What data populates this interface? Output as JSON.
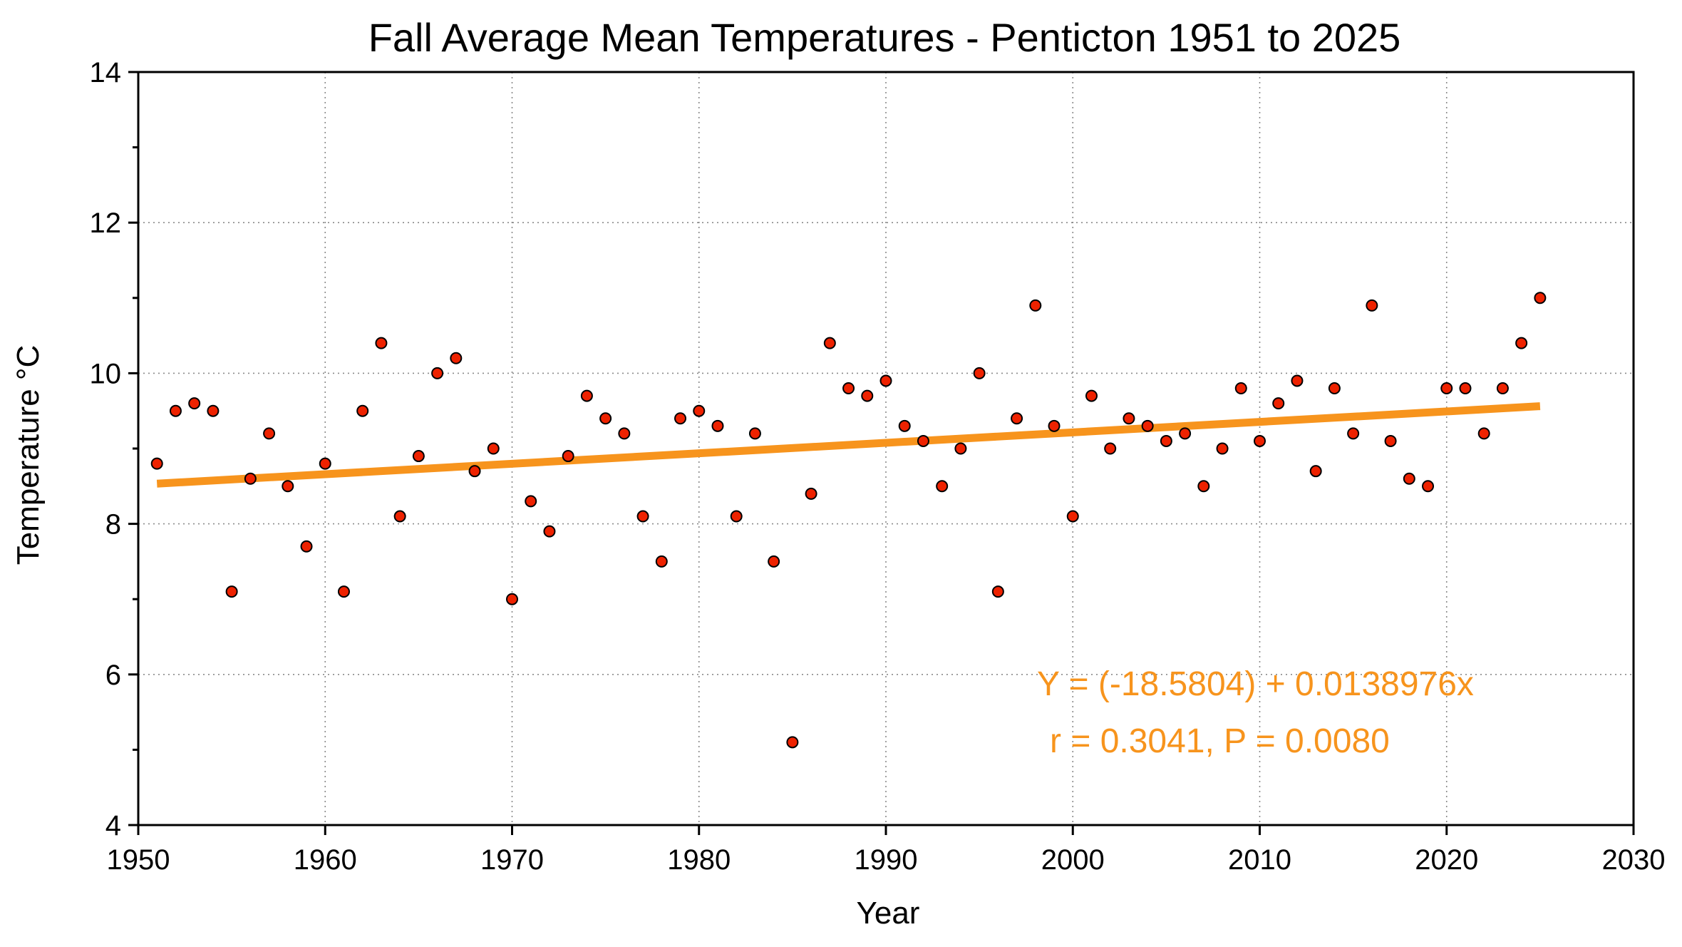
{
  "chart_data": {
    "type": "scatter",
    "title": "Fall Average Mean Temperatures - Penticton 1951 to 2025",
    "xlabel": "Year",
    "ylabel": "Temperature °C",
    "xlim": [
      1950,
      2030
    ],
    "ylim": [
      4,
      14
    ],
    "xticks": [
      1950,
      1960,
      1970,
      1980,
      1990,
      2000,
      2010,
      2020,
      2030
    ],
    "yticks": [
      4,
      6,
      8,
      10,
      12,
      14
    ],
    "yminor_step": 1,
    "grid": true,
    "colors": {
      "points": "#ee2200",
      "trend": "#f7941d",
      "annotation": "#f7941d"
    },
    "series": [
      {
        "x": [
          1951,
          1952,
          1953,
          1954,
          1955,
          1956,
          1957,
          1958,
          1959,
          1960,
          1961,
          1962,
          1963,
          1964,
          1965,
          1966,
          1967,
          1968,
          1969,
          1970,
          1971,
          1972,
          1973,
          1974,
          1975,
          1976,
          1977,
          1978,
          1979,
          1980,
          1981,
          1982,
          1983,
          1984,
          1985,
          1986,
          1987,
          1988,
          1989,
          1990,
          1991,
          1992,
          1993,
          1994,
          1995,
          1996,
          1997,
          1998,
          1999,
          2000,
          2001,
          2002,
          2003,
          2004,
          2005,
          2006,
          2007,
          2008,
          2009,
          2010,
          2011,
          2012,
          2013,
          2014,
          2015,
          2016,
          2017,
          2018,
          2019,
          2020,
          2021,
          2022,
          2023,
          2024,
          2025
        ],
        "y": [
          8.8,
          9.5,
          9.6,
          9.5,
          7.1,
          8.6,
          9.2,
          8.5,
          7.7,
          8.8,
          7.1,
          9.5,
          10.4,
          8.1,
          8.9,
          10.0,
          10.2,
          8.7,
          9.0,
          7.0,
          8.3,
          7.9,
          8.9,
          9.7,
          9.4,
          9.2,
          8.1,
          7.5,
          9.4,
          9.5,
          9.3,
          8.1,
          9.2,
          7.5,
          5.1,
          8.4,
          10.4,
          9.8,
          9.7,
          9.9,
          9.3,
          9.1,
          8.5,
          9.0,
          10.0,
          7.1,
          9.4,
          10.9,
          9.3,
          8.1,
          9.7,
          9.0,
          9.4,
          9.3,
          9.1,
          9.2,
          8.5,
          9.0,
          9.8,
          9.1,
          9.6,
          9.9,
          8.7,
          9.8,
          9.2,
          10.9,
          9.1,
          8.6,
          8.5,
          9.8,
          9.8,
          9.2,
          9.8,
          10.4,
          11.0
        ]
      }
    ],
    "trendline": {
      "intercept": -18.5804,
      "slope": 0.0138976,
      "x_range": [
        1951,
        2025
      ]
    },
    "annotations": [
      "Y = (-18.5804) + 0.0138976x",
      "r = 0.3041, P = 0.0080"
    ]
  }
}
